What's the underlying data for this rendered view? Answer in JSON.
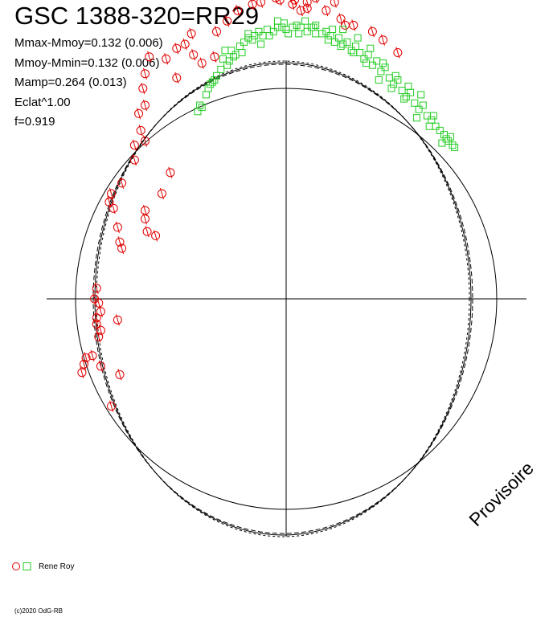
{
  "title": "GSC 1388-320=RR29",
  "stats": [
    "Mmax-Mmoy=0.132 (0.006)",
    "Mmoy-Mmin=0.132 (0.006)",
    "Mamp=0.264 (0.013)",
    "Eclat^1.00",
    "f=0.919"
  ],
  "watermark": "Provisoire",
  "legend": {
    "label": "Rene Roy"
  },
  "credit": "(c)2020 OdG-RB",
  "colors": {
    "series_red": "#e00000",
    "series_green": "#22cc22",
    "lines": "#000000"
  },
  "chart_data": {
    "type": "scatter",
    "kind": "polar-phase-diagram",
    "axes": "crosshair through center, no ticks",
    "reference_circle": "unit circle",
    "fit_curves": "three near-identical closed curves, shifted upward",
    "series": [
      {
        "name": "Rene Roy",
        "marker": "circle",
        "color": "#e00000",
        "x": [
          -0.9,
          -0.89,
          -0.88,
          -0.9,
          -0.9,
          -0.88,
          -0.89,
          -0.91,
          -0.92,
          -0.95,
          -0.96,
          -0.97,
          -0.88,
          -0.79,
          -0.83,
          -0.78,
          -0.79,
          -0.8,
          -0.82,
          -0.84,
          -0.83,
          -0.78,
          -0.72,
          -0.72,
          -0.67,
          -0.69,
          -0.7,
          -0.67,
          -0.68,
          -0.67,
          -0.65,
          -0.57,
          -0.52,
          -0.48,
          -0.45,
          -0.33,
          -0.28,
          -0.23,
          -0.16,
          -0.12,
          -0.05,
          0.04,
          0.1,
          0.14,
          0.26,
          0.23,
          0.28,
          0.32,
          0.41,
          0.46,
          0.53,
          0.03,
          -0.03,
          0.1,
          0.19,
          0.07,
          -0.44,
          -0.52,
          -0.4,
          -0.34,
          -0.55,
          -0.59,
          -0.62,
          -0.66,
          -0.67,
          -0.67,
          -0.8
        ],
        "y": [
          0.05,
          -0.02,
          -0.06,
          -0.09,
          -0.12,
          -0.15,
          -0.18,
          0.0,
          -0.27,
          -0.28,
          -0.31,
          -0.35,
          -0.32,
          -0.36,
          -0.51,
          0.24,
          0.27,
          0.34,
          0.43,
          0.46,
          0.5,
          0.55,
          0.66,
          0.73,
          0.75,
          0.8,
          0.88,
          0.92,
          1.0,
          1.07,
          1.15,
          1.14,
          1.19,
          1.21,
          1.26,
          1.27,
          1.32,
          1.37,
          1.4,
          1.41,
          1.43,
          1.42,
          1.41,
          1.43,
          1.33,
          1.41,
          1.3,
          1.3,
          1.27,
          1.23,
          1.17,
          1.4,
          1.42,
          1.38,
          1.37,
          1.37,
          1.16,
          1.05,
          1.12,
          1.15,
          0.6,
          0.5,
          0.3,
          0.32,
          0.38,
          0.42,
          -0.1
        ]
      },
      {
        "name": "Rene Roy",
        "marker": "square",
        "color": "#22cc22",
        "x": [
          -0.42,
          -0.4,
          -0.38,
          -0.37,
          -0.35,
          -0.33,
          -0.31,
          -0.3,
          -0.28,
          -0.26,
          -0.24,
          -0.22,
          -0.2,
          -0.18,
          -0.16,
          -0.13,
          -0.11,
          -0.09,
          -0.06,
          -0.04,
          -0.02,
          0.0,
          0.03,
          0.05,
          0.07,
          0.1,
          0.12,
          0.14,
          0.17,
          0.19,
          0.21,
          0.23,
          0.25,
          0.27,
          0.29,
          0.31,
          0.33,
          0.35,
          0.37,
          0.39,
          0.41,
          0.43,
          0.45,
          0.47,
          0.49,
          0.51,
          0.53,
          0.55,
          0.57,
          0.59,
          0.61,
          0.63,
          0.65,
          0.67,
          0.69,
          0.71,
          0.73,
          0.75,
          0.77,
          0.79,
          0.8,
          -0.41,
          -0.34,
          -0.27,
          -0.21,
          -0.15,
          -0.08,
          -0.01,
          0.06,
          0.13,
          0.2,
          0.26,
          0.32,
          0.38,
          0.44,
          0.5,
          0.56,
          0.62,
          0.68,
          0.74,
          -0.36,
          -0.25,
          -0.12,
          0.01,
          0.14,
          0.27,
          0.4,
          0.52,
          0.64,
          0.76,
          0.46,
          0.34,
          0.22,
          0.09,
          -0.04,
          -0.18,
          -0.29,
          0.58,
          0.7,
          0.78
        ],
        "y": [
          0.89,
          0.91,
          0.97,
          1.0,
          1.03,
          1.06,
          1.09,
          1.14,
          1.11,
          1.18,
          1.16,
          1.2,
          1.22,
          1.24,
          1.23,
          1.27,
          1.25,
          1.28,
          1.27,
          1.29,
          1.29,
          1.28,
          1.29,
          1.3,
          1.29,
          1.27,
          1.29,
          1.26,
          1.26,
          1.27,
          1.25,
          1.22,
          1.24,
          1.21,
          1.22,
          1.18,
          1.2,
          1.17,
          1.14,
          1.16,
          1.11,
          1.13,
          1.08,
          1.1,
          1.05,
          1.02,
          1.04,
          0.99,
          0.96,
          0.98,
          0.93,
          0.9,
          0.92,
          0.87,
          0.85,
          0.82,
          0.8,
          0.78,
          0.75,
          0.73,
          0.72,
          0.92,
          1.04,
          1.13,
          1.17,
          1.25,
          1.25,
          1.31,
          1.26,
          1.29,
          1.23,
          1.2,
          1.17,
          1.12,
          1.04,
          1.0,
          0.95,
          0.86,
          0.82,
          0.74,
          1.02,
          1.15,
          1.21,
          1.26,
          1.3,
          1.28,
          1.19,
          1.06,
          0.97,
          0.76,
          1.12,
          1.24,
          1.28,
          1.32,
          1.32,
          1.26,
          1.18,
          1.01,
          0.87,
          0.77
        ]
      }
    ]
  }
}
